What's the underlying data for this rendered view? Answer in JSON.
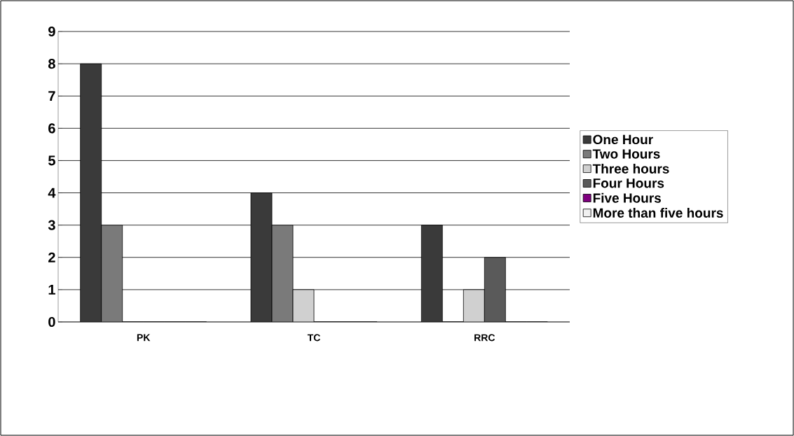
{
  "chart_data": {
    "type": "bar",
    "categories": [
      "PK",
      "TC",
      "RRC"
    ],
    "series": [
      {
        "name": "One Hour",
        "color": "#3a3a3a",
        "values": [
          8,
          4,
          3
        ]
      },
      {
        "name": "Two Hours",
        "color": "#7a7a7a",
        "values": [
          3,
          3,
          0
        ]
      },
      {
        "name": "Three hours",
        "color": "#d0d0d0",
        "values": [
          0,
          1,
          1
        ]
      },
      {
        "name": "Four Hours",
        "color": "#5a5a5a",
        "values": [
          0,
          0,
          2
        ]
      },
      {
        "name": "Five Hours",
        "color": "#800080",
        "values": [
          0,
          0,
          0
        ]
      },
      {
        "name": "More than five hours",
        "color": "#f0f0f0",
        "values": [
          0,
          0,
          0
        ]
      }
    ],
    "ylim": [
      0,
      9
    ],
    "yticks": [
      0,
      1,
      2,
      3,
      4,
      5,
      6,
      7,
      8,
      9
    ],
    "grid": "y",
    "legend": "right"
  }
}
